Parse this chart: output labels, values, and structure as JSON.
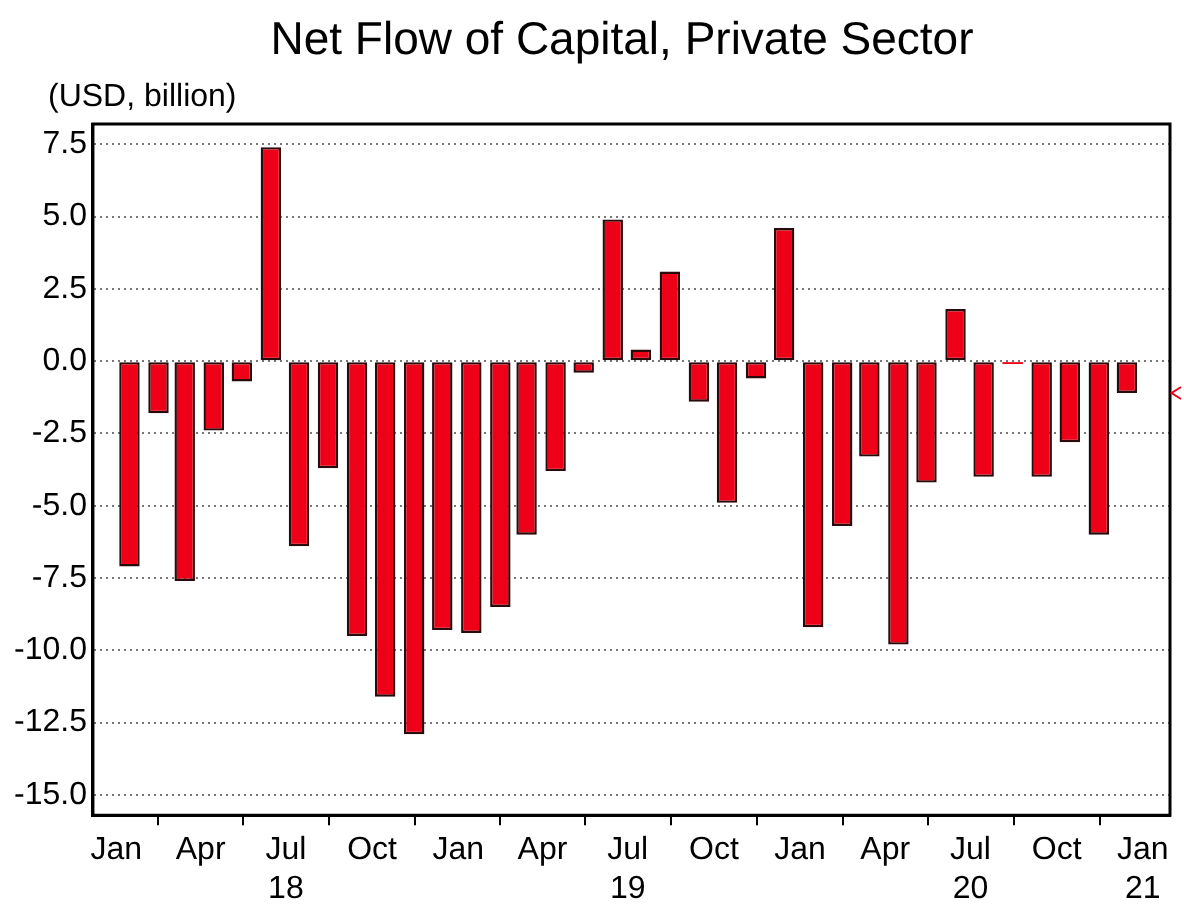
{
  "chart_data": {
    "type": "bar",
    "title": "Net Flow of Capital, Private Sector",
    "ylabel": "(USD, billion)",
    "x": [
      "2018-01-15",
      "2018-02-15",
      "2018-03-15",
      "2018-04-15",
      "2018-05-15",
      "2018-06-15",
      "2018-07-15",
      "2018-08-15",
      "2018-09-15",
      "2018-10-15",
      "2018-11-15",
      "2018-12-15",
      "2019-01-15",
      "2019-02-15",
      "2019-03-15",
      "2019-04-15",
      "2019-05-15",
      "2019-06-15",
      "2019-07-15",
      "2019-08-15",
      "2019-09-15",
      "2019-10-15",
      "2019-11-15",
      "2019-12-15",
      "2020-01-15",
      "2020-02-15",
      "2020-03-15",
      "2020-04-15",
      "2020-05-15",
      "2020-06-15",
      "2020-07-15",
      "2020-08-15",
      "2020-09-15",
      "2020-10-15",
      "2020-11-15",
      "2020-12-15"
    ],
    "values": [
      -7.1,
      -1.8,
      -7.6,
      -2.4,
      -0.7,
      7.4,
      -6.4,
      -3.7,
      -9.5,
      -11.6,
      -12.9,
      -9.3,
      -9.4,
      -8.5,
      -6.0,
      -3.8,
      -0.4,
      4.9,
      0.4,
      3.1,
      -1.4,
      -4.9,
      -0.6,
      4.6,
      -9.2,
      -5.7,
      -3.3,
      -9.8,
      -4.2,
      1.8,
      -4.0,
      -0.1,
      -4.0,
      -2.8,
      -6.0,
      -1.1
    ],
    "color": "#ee0018",
    "xlim": [
      "2017-12-07",
      "2021-01-30"
    ],
    "xticks": [
      {
        "value": "2018-01",
        "label": "Jan"
      },
      {
        "value": "2018-04",
        "label": "Apr"
      },
      {
        "value": "2018-07",
        "label": "Jul\n18"
      },
      {
        "value": "2018-10",
        "label": "Oct"
      },
      {
        "value": "2019-01",
        "label": "Jan"
      },
      {
        "value": "2019-04",
        "label": "Apr"
      },
      {
        "value": "2019-07",
        "label": "Jul\n19"
      },
      {
        "value": "2019-10",
        "label": "Oct"
      },
      {
        "value": "2020-01",
        "label": "Jan"
      },
      {
        "value": "2020-04",
        "label": "Apr"
      },
      {
        "value": "2020-07",
        "label": "Jul\n20"
      },
      {
        "value": "2020-10",
        "label": "Oct"
      },
      {
        "value": "2021-01",
        "label": "Jan\n21"
      }
    ],
    "ylim": [
      -15.7,
      8.2
    ],
    "yticks": [
      {
        "value": -15,
        "label": "-15.0"
      },
      {
        "value": -12.5,
        "label": "-12.5"
      },
      {
        "value": -10,
        "label": "-10.0"
      },
      {
        "value": -7.5,
        "label": "-7.5"
      },
      {
        "value": -5,
        "label": "-5.0"
      },
      {
        "value": -2.5,
        "label": "-2.5"
      },
      {
        "value": 0,
        "label": "0.0"
      },
      {
        "value": 2.5,
        "label": "2.5"
      },
      {
        "value": 5,
        "label": "5.0"
      },
      {
        "value": 7.5,
        "label": "7.5"
      }
    ],
    "grid": "y",
    "legend": false
  }
}
